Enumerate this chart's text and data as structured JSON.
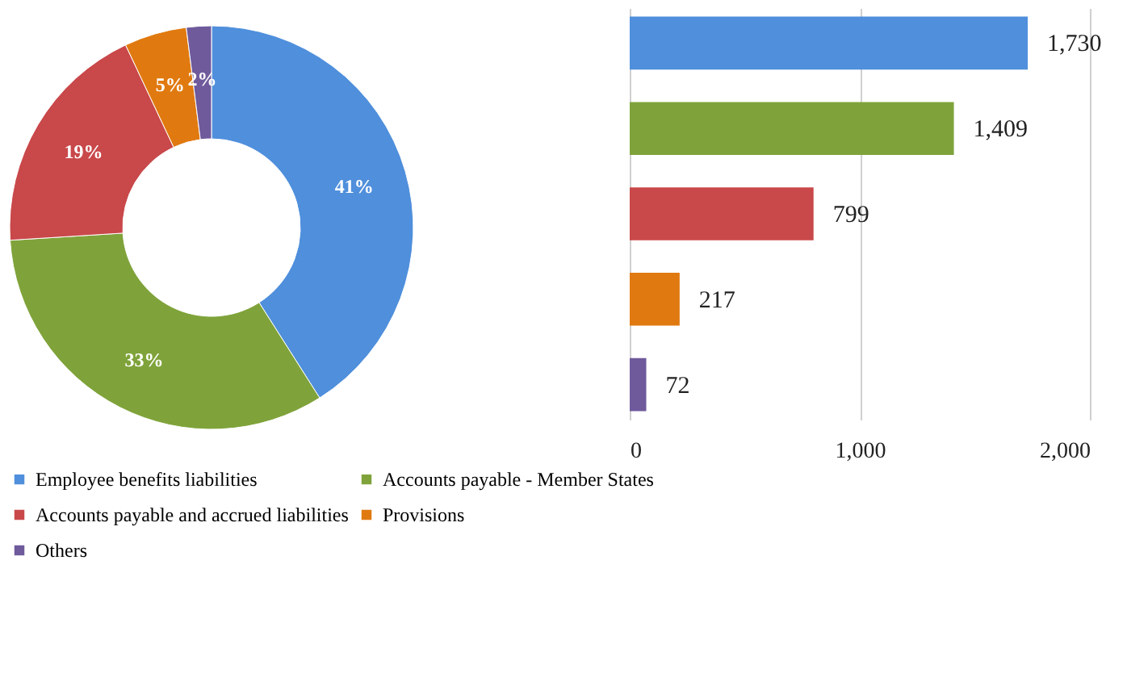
{
  "chart_data": [
    {
      "type": "donut",
      "categories": [
        "Employee benefits liabilities",
        "Accounts payable - Member States",
        "Accounts payable and accrued liabilities",
        "Provisions",
        "Others"
      ],
      "values": [
        41,
        33,
        19,
        5,
        2
      ],
      "colors": [
        "#4f8fdc",
        "#7fa33a",
        "#c9484a",
        "#e07a10",
        "#6f5a9c"
      ],
      "value_labels": [
        "41%",
        "33%",
        "19%",
        "5%",
        "2%"
      ],
      "legend": "bottom"
    },
    {
      "type": "bar",
      "orientation": "horizontal",
      "categories": [
        null,
        null,
        null,
        null,
        null
      ],
      "values": [
        1730,
        1409,
        799,
        217,
        72
      ],
      "colors": [
        "#4f8fdc",
        "#7fa33a",
        "#c9484a",
        "#e07a10",
        "#6f5a9c"
      ],
      "value_labels": [
        "1,730",
        "1,409",
        "799",
        "217",
        "72"
      ],
      "xlim": [
        0,
        2000
      ],
      "xticks": [
        0,
        {
          "value": 1000,
          "label": "1,000"
        },
        {
          "value": 2000,
          "label": "2,000"
        }
      ],
      "grid": "x",
      "tick_labels": "x"
    }
  ]
}
